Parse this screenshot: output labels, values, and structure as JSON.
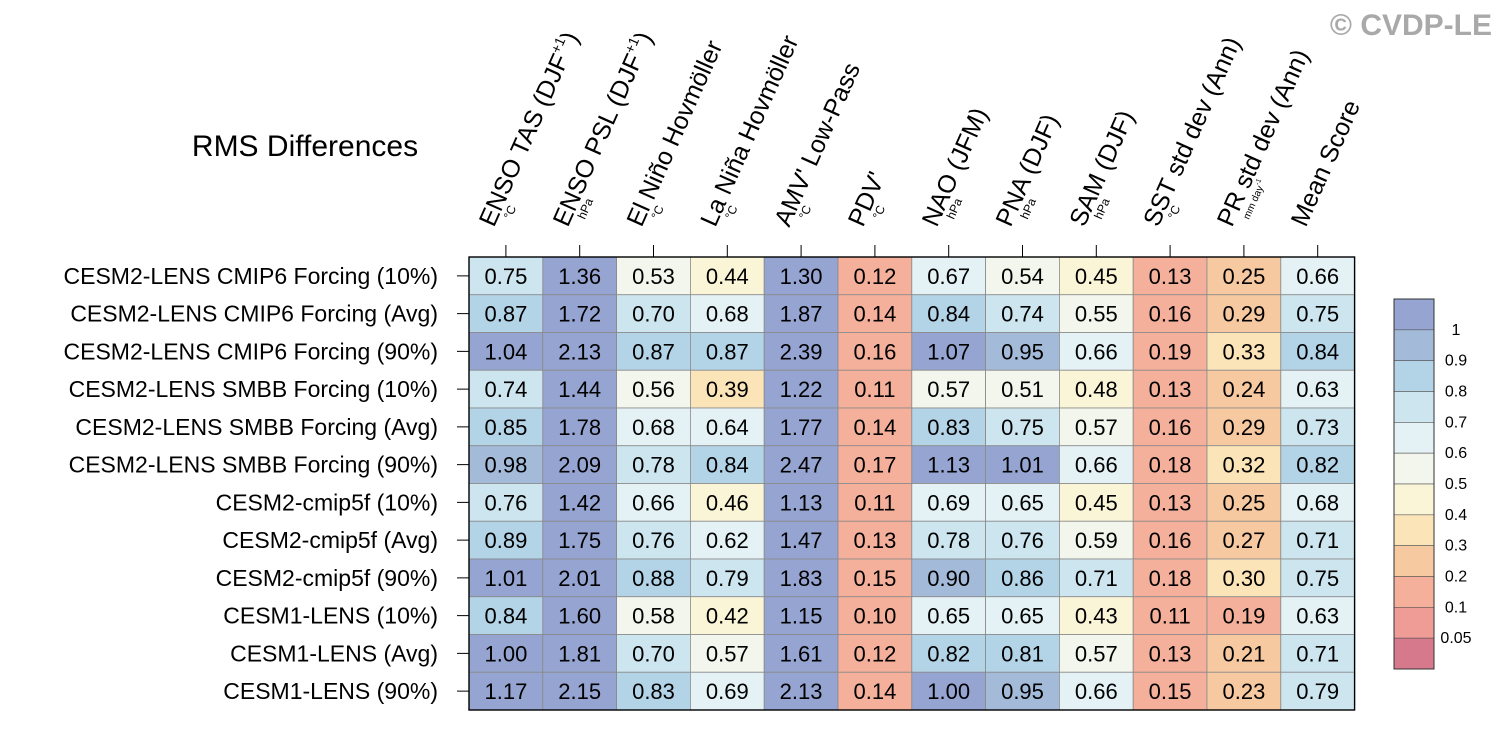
{
  "watermark": "© CVDP-LE",
  "chart_data": {
    "type": "heatmap",
    "title": "RMS Differences",
    "columns": [
      {
        "label": "ENSO TAS (DJF",
        "sup": "+1",
        "close": ")",
        "unit": "°C"
      },
      {
        "label": "ENSO PSL (DJF",
        "sup": "+1",
        "close": ")",
        "unit": "hPa"
      },
      {
        "label": "El Niño Hovmöller",
        "sup": "",
        "close": "",
        "unit": "°C"
      },
      {
        "label": "La Niña Hovmöller",
        "sup": "",
        "close": "",
        "unit": "°C"
      },
      {
        "label": "AMV' Low-Pass",
        "sup": "",
        "close": "",
        "unit": "°C"
      },
      {
        "label": "PDV'",
        "sup": "",
        "close": "",
        "unit": "°C"
      },
      {
        "label": "NAO (JFM)",
        "sup": "",
        "close": "",
        "unit": "hPa"
      },
      {
        "label": "PNA (DJF)",
        "sup": "",
        "close": "",
        "unit": "hPa"
      },
      {
        "label": "SAM (DJF)",
        "sup": "",
        "close": "",
        "unit": "hPa"
      },
      {
        "label": "SST std dev (Ann)",
        "sup": "",
        "close": "",
        "unit": "°C"
      },
      {
        "label": "PR std dev (Ann)",
        "sup": "",
        "close": "",
        "unit": "mm day-1"
      },
      {
        "label": "Mean Score",
        "sup": "",
        "close": "",
        "unit": ""
      }
    ],
    "rows": [
      "CESM2-LENS CMIP6 Forcing (10%)",
      "CESM2-LENS CMIP6 Forcing (Avg)",
      "CESM2-LENS CMIP6 Forcing (90%)",
      "CESM2-LENS SMBB Forcing (10%)",
      "CESM2-LENS SMBB Forcing (Avg)",
      "CESM2-LENS SMBB Forcing (90%)",
      "CESM2-cmip5f (10%)",
      "CESM2-cmip5f (Avg)",
      "CESM2-cmip5f (90%)",
      "CESM1-LENS (10%)",
      "CESM1-LENS (Avg)",
      "CESM1-LENS (90%)"
    ],
    "values": [
      [
        "0.75",
        "1.36",
        "0.53",
        "0.44",
        "1.30",
        "0.12",
        "0.67",
        "0.54",
        "0.45",
        "0.13",
        "0.25",
        "0.66"
      ],
      [
        "0.87",
        "1.72",
        "0.70",
        "0.68",
        "1.87",
        "0.14",
        "0.84",
        "0.74",
        "0.55",
        "0.16",
        "0.29",
        "0.75"
      ],
      [
        "1.04",
        "2.13",
        "0.87",
        "0.87",
        "2.39",
        "0.16",
        "1.07",
        "0.95",
        "0.66",
        "0.19",
        "0.33",
        "0.84"
      ],
      [
        "0.74",
        "1.44",
        "0.56",
        "0.39",
        "1.22",
        "0.11",
        "0.57",
        "0.51",
        "0.48",
        "0.13",
        "0.24",
        "0.63"
      ],
      [
        "0.85",
        "1.78",
        "0.68",
        "0.64",
        "1.77",
        "0.14",
        "0.83",
        "0.75",
        "0.57",
        "0.16",
        "0.29",
        "0.73"
      ],
      [
        "0.98",
        "2.09",
        "0.78",
        "0.84",
        "2.47",
        "0.17",
        "1.13",
        "1.01",
        "0.66",
        "0.18",
        "0.32",
        "0.82"
      ],
      [
        "0.76",
        "1.42",
        "0.66",
        "0.46",
        "1.13",
        "0.11",
        "0.69",
        "0.65",
        "0.45",
        "0.13",
        "0.25",
        "0.68"
      ],
      [
        "0.89",
        "1.75",
        "0.76",
        "0.62",
        "1.47",
        "0.13",
        "0.78",
        "0.76",
        "0.59",
        "0.16",
        "0.27",
        "0.71"
      ],
      [
        "1.01",
        "2.01",
        "0.88",
        "0.79",
        "1.83",
        "0.15",
        "0.90",
        "0.86",
        "0.71",
        "0.18",
        "0.30",
        "0.75"
      ],
      [
        "0.84",
        "1.60",
        "0.58",
        "0.42",
        "1.15",
        "0.10",
        "0.65",
        "0.65",
        "0.43",
        "0.11",
        "0.19",
        "0.63"
      ],
      [
        "1.00",
        "1.81",
        "0.70",
        "0.57",
        "1.61",
        "0.12",
        "0.82",
        "0.81",
        "0.57",
        "0.13",
        "0.21",
        "0.71"
      ],
      [
        "1.17",
        "2.15",
        "0.83",
        "0.69",
        "2.13",
        "0.14",
        "1.00",
        "0.95",
        "0.66",
        "0.15",
        "0.23",
        "0.79"
      ]
    ],
    "colorbar": {
      "labels": [
        "1",
        "0.9",
        "0.8",
        "0.7",
        "0.6",
        "0.5",
        "0.4",
        "0.3",
        "0.2",
        "0.1",
        "0.05"
      ],
      "bounds": [
        0.05,
        0.1,
        0.2,
        0.3,
        0.4,
        0.5,
        0.6,
        0.7,
        0.8,
        0.9,
        1
      ],
      "colors": [
        "#d7798c",
        "#ee9c95",
        "#f4b09a",
        "#f7c9a1",
        "#fbe4b7",
        "#fbf5d8",
        "#f3f6ec",
        "#e4f1f5",
        "#cce5ef",
        "#b3d3e7",
        "#a3bad9",
        "#95a4d1"
      ]
    }
  }
}
